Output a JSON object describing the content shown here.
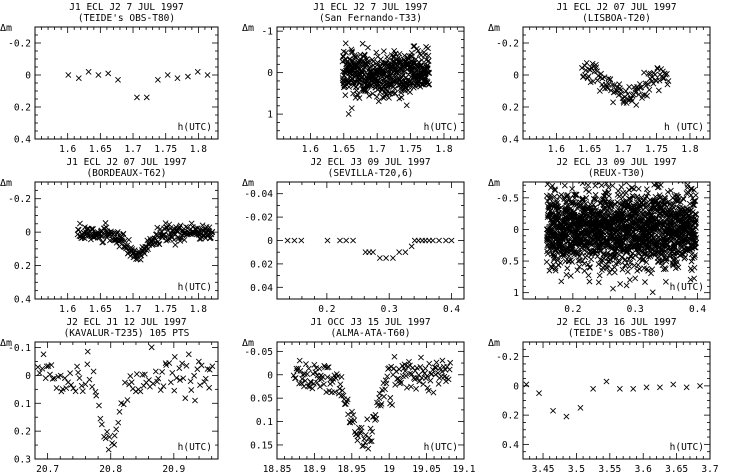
{
  "chart_data": [
    {
      "type": "scatter",
      "title": "J1 ECL J2 7 JUL 1997",
      "subtitle": "(TEIDE's OBS-T80)",
      "ylabel": "Δm",
      "xlabel": "h(UTC)",
      "xlim": [
        1.55,
        1.83
      ],
      "ylim": [
        0.4,
        -0.3
      ],
      "x_ticks_major": [
        1.6,
        1.65,
        1.7,
        1.75,
        1.8
      ],
      "x_ticks_minor": [
        1.56,
        1.57,
        1.58,
        1.59,
        1.61,
        1.62,
        1.63,
        1.64,
        1.66,
        1.67,
        1.68,
        1.69,
        1.71,
        1.72,
        1.73,
        1.74,
        1.76,
        1.77,
        1.78,
        1.79,
        1.81,
        1.82
      ],
      "x_tick_labels": [
        "1.6",
        "1.65",
        "1.7",
        "1.75",
        "1.8"
      ],
      "y_ticks_major": [
        -0.2,
        0,
        0.2,
        0.4
      ],
      "y_ticks_minor": [
        -0.25,
        -0.15,
        -0.1,
        -0.05,
        0.05,
        0.1,
        0.15,
        0.25,
        0.3,
        0.35
      ],
      "y_tick_labels": [
        "-0.2",
        "0",
        "0.2",
        "0.4"
      ],
      "points": {
        "x": [
          1.601,
          1.617,
          1.632,
          1.647,
          1.662,
          1.677,
          1.706,
          1.721,
          1.738,
          1.753,
          1.768,
          1.784,
          1.799,
          1.814
        ],
        "y": [
          0.0,
          0.02,
          -0.02,
          0.0,
          -0.01,
          0.03,
          0.14,
          0.14,
          0.03,
          0.0,
          0.02,
          0.01,
          -0.02,
          0.0
        ]
      },
      "n_points": 14
    },
    {
      "type": "scatter",
      "title": "J1 ECL J2 7 JUL 1997",
      "subtitle": "(San Fernando-T33)",
      "ylabel": "Δm",
      "xlabel": "h(UTC)",
      "xlim": [
        1.55,
        1.83
      ],
      "ylim": [
        1.6,
        -1.1
      ],
      "x_ticks_major": [
        1.6,
        1.65,
        1.7,
        1.75,
        1.8
      ],
      "x_ticks_minor": [
        1.56,
        1.57,
        1.58,
        1.59,
        1.61,
        1.62,
        1.63,
        1.64,
        1.66,
        1.67,
        1.68,
        1.69,
        1.71,
        1.72,
        1.73,
        1.74,
        1.76,
        1.77,
        1.78,
        1.79,
        1.81,
        1.82
      ],
      "x_tick_labels": [
        "1.6",
        "1.65",
        "1.7",
        "1.75",
        "1.8"
      ],
      "y_ticks_major": [
        -1,
        0,
        1
      ],
      "y_ticks_minor": [
        -0.8,
        -0.6,
        -0.4,
        -0.2,
        0.2,
        0.4,
        0.6,
        0.8,
        1.2,
        1.4
      ],
      "y_tick_labels": [
        "-1",
        "0",
        "1"
      ],
      "generated": {
        "n": 560,
        "x0": 1.648,
        "x1": 1.778,
        "dip_center": 1.705,
        "dip_depth": 0.14,
        "dip_width": 0.012,
        "noise": 0.28,
        "seed": 11
      },
      "n_points": 560
    },
    {
      "type": "scatter",
      "title": "J1 ECL J2 07 JUL 1997",
      "subtitle": "(LISBOA-T20)",
      "ylabel": "Δm",
      "xlabel": "h (UTC)",
      "xlim": [
        1.55,
        1.83
      ],
      "ylim": [
        0.4,
        -0.3
      ],
      "x_ticks_major": [
        1.6,
        1.65,
        1.7,
        1.75,
        1.8
      ],
      "x_ticks_minor": [
        1.56,
        1.57,
        1.58,
        1.59,
        1.61,
        1.62,
        1.63,
        1.64,
        1.66,
        1.67,
        1.68,
        1.69,
        1.71,
        1.72,
        1.73,
        1.74,
        1.76,
        1.77,
        1.78,
        1.79,
        1.81,
        1.82
      ],
      "x_tick_labels": [
        "1.6",
        "1.65",
        "1.7",
        "1.75",
        "1.8"
      ],
      "y_ticks_major": [
        -0.2,
        0,
        0.2,
        0.4
      ],
      "y_ticks_minor": [
        -0.25,
        -0.15,
        -0.1,
        -0.05,
        0.05,
        0.1,
        0.15,
        0.25,
        0.3,
        0.35
      ],
      "y_tick_labels": [
        "-0.2",
        "0",
        "0.2",
        "0.4"
      ],
      "generated": {
        "n": 110,
        "x0": 1.638,
        "x1": 1.768,
        "dip_center": 1.705,
        "dip_depth": 0.15,
        "dip_width": 0.02,
        "noise": 0.035,
        "seed": 23
      },
      "n_points": 110
    },
    {
      "type": "scatter",
      "title": "J1 ECL J2 07 JUL 1997",
      "subtitle": "(BORDEAUX-T62)",
      "ylabel": "Δm",
      "xlabel": "h(UTC)",
      "xlim": [
        1.55,
        1.83
      ],
      "ylim": [
        0.4,
        -0.3
      ],
      "x_ticks_major": [
        1.6,
        1.65,
        1.7,
        1.75,
        1.8
      ],
      "x_ticks_minor": [
        1.56,
        1.57,
        1.58,
        1.59,
        1.61,
        1.62,
        1.63,
        1.64,
        1.66,
        1.67,
        1.68,
        1.69,
        1.71,
        1.72,
        1.73,
        1.74,
        1.76,
        1.77,
        1.78,
        1.79,
        1.81,
        1.82
      ],
      "x_tick_labels": [
        "1.6",
        "1.65",
        "1.7",
        "1.75",
        "1.8"
      ],
      "y_ticks_major": [
        -0.2,
        0,
        0.2,
        0.4
      ],
      "y_ticks_minor": [
        -0.25,
        -0.15,
        -0.1,
        -0.05,
        0.05,
        0.1,
        0.15,
        0.25,
        0.3,
        0.35
      ],
      "y_tick_labels": [
        "-0.2",
        "0",
        "0.2",
        "0.4"
      ],
      "generated": {
        "n": 260,
        "x0": 1.615,
        "x1": 1.822,
        "dip_center": 1.705,
        "dip_depth": 0.13,
        "dip_width": 0.018,
        "noise": 0.025,
        "seed": 37
      },
      "n_points": 260
    },
    {
      "type": "scatter",
      "title": "J2 ECL J3 09 JUL 1997",
      "subtitle": "(SEVILLA-T20,6)",
      "ylabel": "Δm",
      "xlabel": "",
      "xlim": [
        0.12,
        0.42
      ],
      "ylim": [
        0.05,
        -0.05
      ],
      "x_ticks_major": [
        0.2,
        0.3,
        0.4
      ],
      "x_ticks_minor": [
        0.14,
        0.16,
        0.18,
        0.22,
        0.24,
        0.26,
        0.28,
        0.32,
        0.34,
        0.36,
        0.38
      ],
      "x_tick_labels": [
        "0.2",
        "0.3",
        "0.4"
      ],
      "y_ticks_major": [
        -0.04,
        -0.02,
        0,
        0.02,
        0.04
      ],
      "y_ticks_minor": [
        -0.03,
        -0.01,
        0.01,
        0.03
      ],
      "y_tick_labels": [
        "-0.04",
        "-0.02",
        "0",
        "0.02",
        "0.04"
      ],
      "points": {
        "x": [
          0.137,
          0.148,
          0.159,
          0.201,
          0.221,
          0.231,
          0.242,
          0.262,
          0.268,
          0.274,
          0.285,
          0.295,
          0.306,
          0.316,
          0.326,
          0.336,
          0.341,
          0.347,
          0.353,
          0.358,
          0.364,
          0.37,
          0.38,
          0.391,
          0.4
        ],
        "y": [
          0.0,
          0.0,
          0.0,
          0.0,
          0.0,
          0.0,
          0.0,
          0.01,
          0.01,
          0.01,
          0.015,
          0.015,
          0.015,
          0.01,
          0.01,
          0.005,
          0.0,
          0.0,
          0.0,
          0.0,
          0.0,
          0.0,
          0.0,
          0.0,
          0.0
        ]
      },
      "n_points": 25
    },
    {
      "type": "scatter",
      "title": "J2 ECL J3 09 JUL 1997",
      "subtitle": "(REUX-T30)",
      "ylabel": "Δm",
      "xlabel": "h(UTC)",
      "xlim": [
        0.12,
        0.42
      ],
      "ylim": [
        1.1,
        -0.75
      ],
      "x_ticks_major": [
        0.2,
        0.3,
        0.4
      ],
      "x_ticks_minor": [
        0.14,
        0.16,
        0.18,
        0.22,
        0.24,
        0.26,
        0.28,
        0.32,
        0.34,
        0.36,
        0.38
      ],
      "x_tick_labels": [
        "0.2",
        "0.3",
        "0.4"
      ],
      "y_ticks_major": [
        -0.5,
        0,
        0.5,
        1
      ],
      "y_ticks_minor": [
        -0.7,
        -0.6,
        -0.4,
        -0.3,
        -0.2,
        -0.1,
        0.1,
        0.2,
        0.3,
        0.4,
        0.6,
        0.7,
        0.8,
        0.9
      ],
      "y_tick_labels": [
        "-0.5",
        "0",
        "0.5",
        "1"
      ],
      "generated": {
        "n": 1900,
        "x0": 0.158,
        "x1": 0.398,
        "dip_center": 0.29,
        "dip_depth": 0.0,
        "dip_width": 0.02,
        "noise": 0.3,
        "seed": 53
      },
      "n_points": 1900
    },
    {
      "type": "scatter",
      "title": "J2 ECL J1 12 JUL 1997",
      "subtitle": "(KAVALUR-T235) 105 PTS",
      "ylabel": "Δm",
      "xlabel": "h(UTC)",
      "xlim": [
        20.68,
        20.97
      ],
      "ylim": [
        0.3,
        -0.12
      ],
      "x_ticks_major": [
        20.7,
        20.8,
        20.9
      ],
      "x_ticks_minor": [
        20.72,
        20.74,
        20.76,
        20.78,
        20.82,
        20.84,
        20.86,
        20.88,
        20.92,
        20.94,
        20.96
      ],
      "x_tick_labels": [
        "20.7",
        "20.8",
        "20.9"
      ],
      "y_ticks_major": [
        -0.1,
        0,
        0.1,
        0.2,
        0.3
      ],
      "y_ticks_minor": [
        -0.05,
        0.05,
        0.15,
        0.25
      ],
      "y_tick_labels": [
        "-0.1",
        "0",
        "0.1",
        "0.2",
        "0.3"
      ],
      "generated": {
        "n": 105,
        "x0": 20.684,
        "x1": 20.962,
        "dip_center": 20.8,
        "dip_depth": 0.24,
        "dip_width": 0.016,
        "noise": 0.04,
        "seed": 71
      },
      "n_points": 105
    },
    {
      "type": "scatter",
      "title": "J1 OCC J3 15 JUL 1997",
      "subtitle": "(ALMA-ATA-T60)",
      "ylabel": "Δm",
      "xlabel": "h(UTC)",
      "xlim": [
        18.85,
        19.1
      ],
      "ylim": [
        0.18,
        -0.07
      ],
      "x_ticks_major": [
        18.85,
        18.9,
        18.95,
        19,
        19.05,
        19.1
      ],
      "x_ticks_minor": [
        18.86,
        18.87,
        18.88,
        18.89,
        18.91,
        18.92,
        18.93,
        18.94,
        18.96,
        18.97,
        18.98,
        18.99,
        19.01,
        19.02,
        19.03,
        19.04,
        19.06,
        19.07,
        19.08,
        19.09
      ],
      "x_tick_labels": [
        "18.85",
        "18.9",
        "18.95",
        "19",
        "19.05",
        "19.1"
      ],
      "y_ticks_major": [
        -0.05,
        0,
        0.05,
        0.1,
        0.15
      ],
      "y_ticks_minor": [
        -0.025,
        0.025,
        0.075,
        0.125
      ],
      "y_tick_labels": [
        "-0.05",
        "0",
        "0.05",
        "0.1",
        "0.15"
      ],
      "generated": {
        "n": 190,
        "x0": 18.872,
        "x1": 19.082,
        "dip_center": 18.965,
        "dip_depth": 0.14,
        "dip_width": 0.017,
        "noise": 0.018,
        "seed": 89
      },
      "n_points": 190
    },
    {
      "type": "scatter",
      "title": "J2 ECL J3 16 JUL 1997",
      "subtitle": "(TEIDE's OBS-T80)",
      "ylabel": "Δm",
      "xlabel": "h(UTC)",
      "xlim": [
        3.42,
        3.7
      ],
      "ylim": [
        0.5,
        -0.3
      ],
      "x_ticks_major": [
        3.45,
        3.5,
        3.55,
        3.6,
        3.65,
        3.7
      ],
      "x_ticks_minor": [
        3.43,
        3.44,
        3.46,
        3.47,
        3.48,
        3.49,
        3.51,
        3.52,
        3.53,
        3.54,
        3.56,
        3.57,
        3.58,
        3.59,
        3.61,
        3.62,
        3.63,
        3.64,
        3.66,
        3.67,
        3.68,
        3.69
      ],
      "x_tick_labels": [
        "3.45",
        "3.5",
        "3.55",
        "3.6",
        "3.65",
        "3.7"
      ],
      "y_ticks_major": [
        -0.2,
        0,
        0.2,
        0.4
      ],
      "y_ticks_minor": [
        -0.25,
        -0.15,
        -0.1,
        -0.05,
        0.05,
        0.1,
        0.15,
        0.25,
        0.3,
        0.35,
        0.45
      ],
      "y_tick_labels": [
        "-0.2",
        "0",
        "0.2",
        "0.4"
      ],
      "points": {
        "x": [
          3.425,
          3.444,
          3.465,
          3.485,
          3.506,
          3.525,
          3.545,
          3.565,
          3.585,
          3.605,
          3.625,
          3.645,
          3.665,
          3.685
        ],
        "y": [
          -0.01,
          0.05,
          0.17,
          0.21,
          0.15,
          0.02,
          -0.03,
          0.02,
          0.02,
          0.01,
          0.01,
          -0.01,
          0.01,
          0.0
        ]
      },
      "n_points": 14
    }
  ]
}
